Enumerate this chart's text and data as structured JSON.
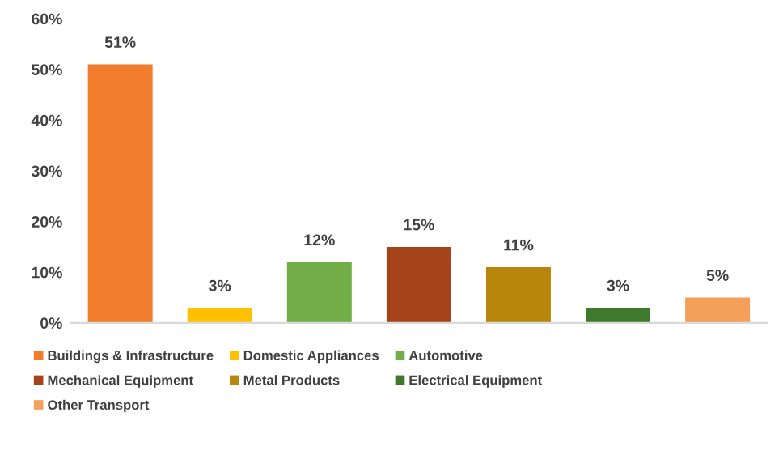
{
  "chart_data": {
    "type": "bar",
    "categories": [
      null,
      null,
      null,
      null,
      null,
      null,
      null
    ],
    "series": [
      {
        "name": "Buildings & Infrastructure",
        "color": "#f07c2c",
        "values": [
          51,
          null,
          null,
          null,
          null,
          null,
          null
        ],
        "value_labels": [
          "51%",
          null,
          null,
          null,
          null,
          null,
          null
        ]
      },
      {
        "name": "Domestic Appliances",
        "color": "#ffc000",
        "values": [
          null,
          3,
          null,
          null,
          null,
          null,
          null
        ],
        "value_labels": [
          null,
          "3%",
          null,
          null,
          null,
          null,
          null
        ]
      },
      {
        "name": "Automotive",
        "color": "#72ad47",
        "values": [
          null,
          null,
          12,
          null,
          null,
          null,
          null
        ],
        "value_labels": [
          null,
          null,
          "12%",
          null,
          null,
          null,
          null
        ]
      },
      {
        "name": "Mechanical Equipment",
        "color": "#a5441a",
        "values": [
          null,
          null,
          null,
          15,
          null,
          null,
          null
        ],
        "value_labels": [
          null,
          null,
          null,
          "15%",
          null,
          null,
          null
        ]
      },
      {
        "name": "Metal Products",
        "color": "#b8860b",
        "values": [
          null,
          null,
          null,
          null,
          11,
          null,
          null
        ],
        "value_labels": [
          null,
          null,
          null,
          null,
          "11%",
          null,
          null
        ]
      },
      {
        "name": "Electrical Equipment",
        "color": "#3f7a2c",
        "values": [
          null,
          null,
          null,
          null,
          null,
          3,
          null
        ],
        "value_labels": [
          null,
          null,
          null,
          null,
          null,
          "3%",
          null
        ]
      },
      {
        "name": "Other Transport",
        "color": "#f4a05a",
        "values": [
          null,
          null,
          null,
          null,
          null,
          null,
          5
        ],
        "value_labels": [
          null,
          null,
          null,
          null,
          null,
          null,
          "5%"
        ]
      }
    ],
    "ylim": [
      0,
      60
    ],
    "yticks": [
      {
        "value": 0,
        "label": "0%"
      },
      {
        "value": 10,
        "label": "10%"
      },
      {
        "value": 20,
        "label": "20%"
      },
      {
        "value": 30,
        "label": "30%"
      },
      {
        "value": 40,
        "label": "40%"
      },
      {
        "value": 50,
        "label": "50%"
      },
      {
        "value": 60,
        "label": "60%"
      }
    ],
    "tick_labels": "y",
    "grid": false,
    "legend": "bottom"
  }
}
